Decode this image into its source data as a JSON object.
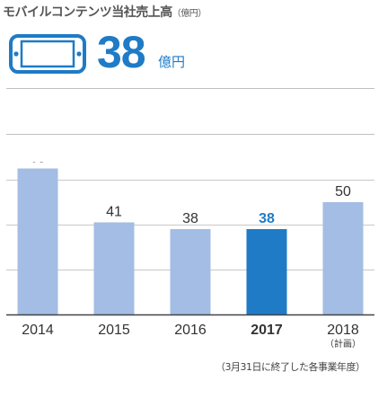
{
  "header": {
    "title": "モバイルコンテンツ当社売上高",
    "title_unit": "（億円）"
  },
  "kpi": {
    "icon": "smartphone-icon",
    "value": "38",
    "unit": "億円",
    "color": "#1f7bc6"
  },
  "chart_data": {
    "type": "bar",
    "categories": [
      "2014",
      "2015",
      "2016",
      "2017",
      "2018"
    ],
    "category_sublabels": [
      "",
      "",
      "",
      "",
      "（計画）"
    ],
    "values": [
      65,
      41,
      38,
      38,
      50
    ],
    "highlight_index": 3,
    "colors": {
      "default": "#a3bde4",
      "highlight": "#1f7bc6"
    },
    "title": "",
    "xlabel": "",
    "ylabel": "",
    "ylim": [
      0,
      100
    ],
    "grid": true
  },
  "footnote": "（3月31日に終了した各事業年度）"
}
